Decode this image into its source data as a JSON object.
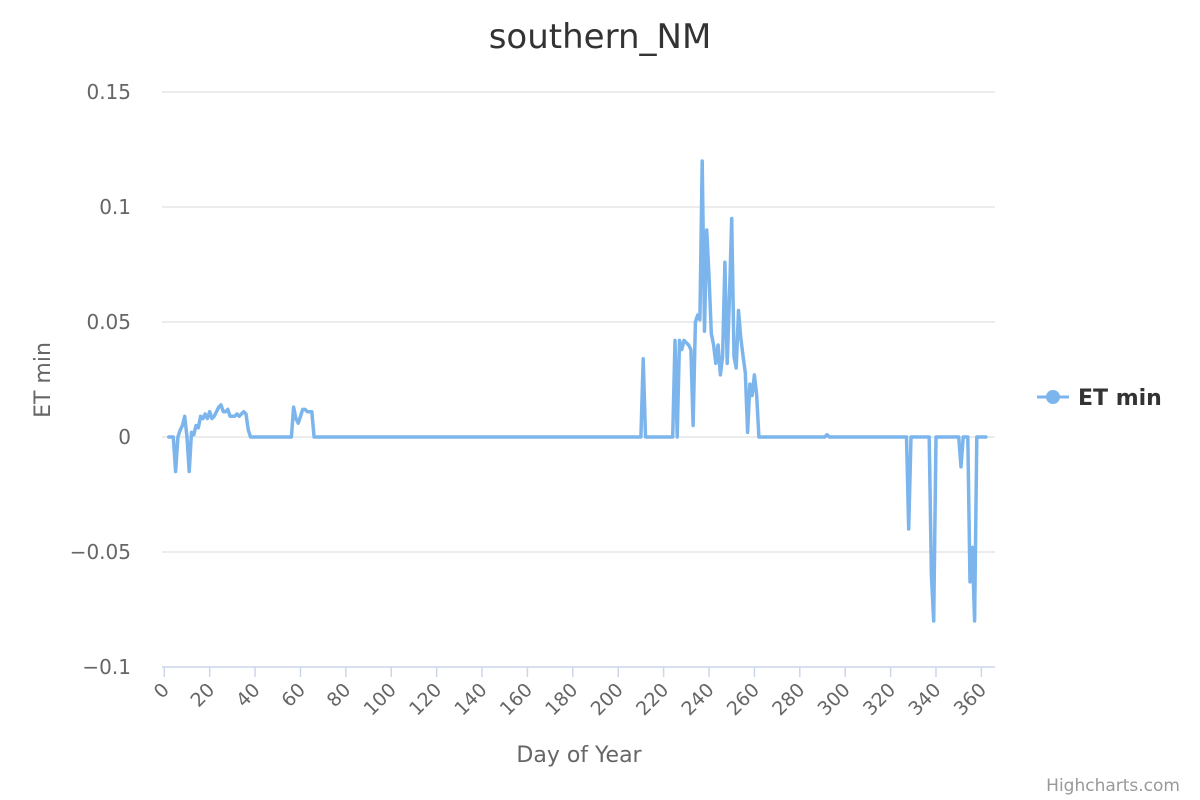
{
  "chart_data": {
    "type": "line",
    "title": "southern_NM",
    "xlabel": "Day of Year",
    "ylabel": "ET min",
    "xlim": [
      -1,
      366
    ],
    "ylim": [
      -0.1,
      0.15
    ],
    "x_ticks": [
      "0",
      "20",
      "40",
      "60",
      "80",
      "100",
      "120",
      "140",
      "160",
      "180",
      "200",
      "220",
      "240",
      "260",
      "280",
      "300",
      "320",
      "340",
      "360"
    ],
    "y_ticks": [
      "0.15",
      "0.1",
      "0.05",
      "0",
      "−0.05",
      "−0.1"
    ],
    "legend_position": "right",
    "grid": true,
    "series": [
      {
        "name": "ET min",
        "color": "#7cb5ec",
        "points": [
          [
            2,
            0
          ],
          [
            4,
            0
          ],
          [
            5,
            -0.015
          ],
          [
            6,
            0
          ],
          [
            7,
            0.003
          ],
          [
            8,
            0.005
          ],
          [
            9,
            0.009
          ],
          [
            10,
            0
          ],
          [
            11,
            -0.015
          ],
          [
            12,
            0.002
          ],
          [
            13,
            0.001
          ],
          [
            14,
            0.005
          ],
          [
            15,
            0.004
          ],
          [
            16,
            0.009
          ],
          [
            17,
            0.008
          ],
          [
            18,
            0.01
          ],
          [
            19,
            0.008
          ],
          [
            20,
            0.011
          ],
          [
            21,
            0.008
          ],
          [
            22,
            0.009
          ],
          [
            23,
            0.011
          ],
          [
            24,
            0.013
          ],
          [
            25,
            0.014
          ],
          [
            26,
            0.011
          ],
          [
            27,
            0.011
          ],
          [
            28,
            0.012
          ],
          [
            29,
            0.009
          ],
          [
            30,
            0.009
          ],
          [
            31,
            0.009
          ],
          [
            32,
            0.01
          ],
          [
            33,
            0.009
          ],
          [
            34,
            0.01
          ],
          [
            35,
            0.011
          ],
          [
            36,
            0.01
          ],
          [
            37,
            0.003
          ],
          [
            38,
            0
          ],
          [
            42,
            0
          ],
          [
            50,
            0
          ],
          [
            56,
            0
          ],
          [
            57,
            0.013
          ],
          [
            58,
            0.008
          ],
          [
            59,
            0.006
          ],
          [
            60,
            0.009
          ],
          [
            61,
            0.012
          ],
          [
            62,
            0.012
          ],
          [
            63,
            0.011
          ],
          [
            64,
            0.011
          ],
          [
            65,
            0.011
          ],
          [
            66,
            0
          ],
          [
            70,
            0
          ],
          [
            100,
            0
          ],
          [
            150,
            0
          ],
          [
            200,
            0
          ],
          [
            210,
            0
          ],
          [
            211,
            0.034
          ],
          [
            212,
            0
          ],
          [
            218,
            0
          ],
          [
            224,
            0
          ],
          [
            225,
            0.042
          ],
          [
            226,
            0
          ],
          [
            227,
            0.042
          ],
          [
            228,
            0.038
          ],
          [
            229,
            0.042
          ],
          [
            230,
            0.041
          ],
          [
            231,
            0.04
          ],
          [
            232,
            0.038
          ],
          [
            233,
            0.005
          ],
          [
            234,
            0.05
          ],
          [
            235,
            0.053
          ],
          [
            236,
            0.051
          ],
          [
            237,
            0.12
          ],
          [
            238,
            0.046
          ],
          [
            239,
            0.09
          ],
          [
            240,
            0.07
          ],
          [
            241,
            0.045
          ],
          [
            242,
            0.04
          ],
          [
            243,
            0.032
          ],
          [
            244,
            0.04
          ],
          [
            245,
            0.027
          ],
          [
            246,
            0.035
          ],
          [
            247,
            0.076
          ],
          [
            248,
            0.032
          ],
          [
            249,
            0.06
          ],
          [
            250,
            0.095
          ],
          [
            251,
            0.035
          ],
          [
            252,
            0.03
          ],
          [
            253,
            0.055
          ],
          [
            254,
            0.043
          ],
          [
            255,
            0.035
          ],
          [
            256,
            0.028
          ],
          [
            257,
            0.002
          ],
          [
            258,
            0.023
          ],
          [
            259,
            0.018
          ],
          [
            260,
            0.027
          ],
          [
            261,
            0.018
          ],
          [
            262,
            0
          ],
          [
            270,
            0
          ],
          [
            291,
            0
          ],
          [
            292,
            0.001
          ],
          [
            293,
            0
          ],
          [
            300,
            0
          ],
          [
            320,
            0
          ],
          [
            327,
            0
          ],
          [
            328,
            -0.04
          ],
          [
            329,
            0
          ],
          [
            333,
            0
          ],
          [
            337,
            0
          ],
          [
            338,
            -0.06
          ],
          [
            339,
            -0.08
          ],
          [
            340,
            0
          ],
          [
            345,
            0
          ],
          [
            350,
            0
          ],
          [
            351,
            -0.013
          ],
          [
            352,
            0
          ],
          [
            354,
            0
          ],
          [
            355,
            -0.063
          ],
          [
            356,
            -0.048
          ],
          [
            357,
            -0.08
          ],
          [
            358,
            0
          ],
          [
            362,
            0
          ]
        ]
      }
    ]
  },
  "credits": "Highcharts.com"
}
